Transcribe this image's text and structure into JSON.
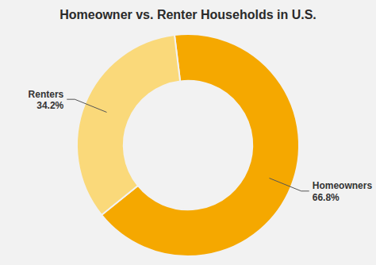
{
  "chart_data": {
    "type": "donut",
    "title": "Homeowner vs. Renter Households in U.S.",
    "categories": [
      "Homeowners",
      "Renters"
    ],
    "values": [
      66.8,
      34.2
    ],
    "value_labels": [
      "66.8%",
      "34.2%"
    ],
    "colors": [
      "#F5A800",
      "#FAD97A"
    ],
    "data_labels": true
  }
}
